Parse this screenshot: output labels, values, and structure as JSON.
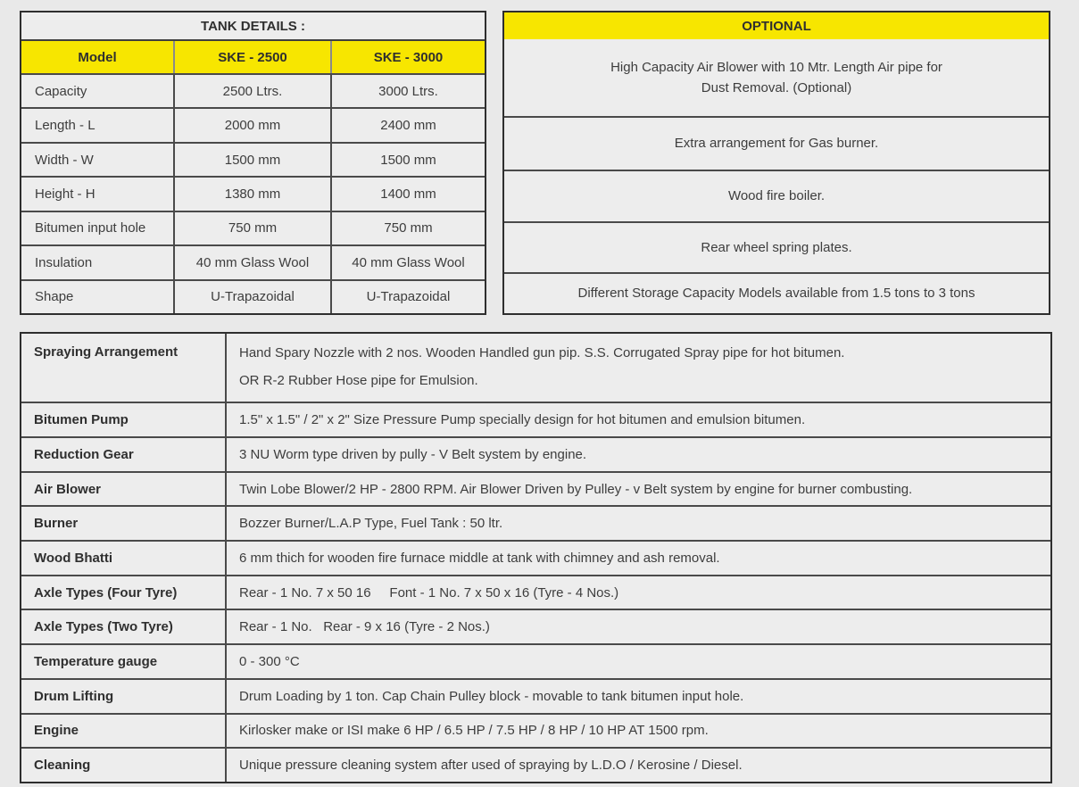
{
  "colors": {
    "accent_yellow": "#f7e600",
    "background": "#e9e9e9",
    "panel_fill": "#ededed",
    "border_dark": "#2e2e2e",
    "text": "#3d3d3d"
  },
  "tank_details": {
    "title": "TANK DETAILS :",
    "header": {
      "model": "Model",
      "ske_2500": "SKE - 2500",
      "ske_3000": "SKE - 3000"
    },
    "rows": [
      {
        "label": "Capacity",
        "ske_2500": "2500 Ltrs.",
        "ske_3000": "3000 Ltrs."
      },
      {
        "label": "Length - L",
        "ske_2500": "2000 mm",
        "ske_3000": "2400 mm"
      },
      {
        "label": "Width - W",
        "ske_2500": "1500 mm",
        "ske_3000": "1500 mm"
      },
      {
        "label": "Height - H",
        "ske_2500": "1380 mm",
        "ske_3000": "1400 mm"
      },
      {
        "label": "Bitumen input hole",
        "ske_2500": "750 mm",
        "ske_3000": "750 mm"
      },
      {
        "label": "Insulation",
        "ske_2500": "40 mm Glass Wool",
        "ske_3000": "40 mm Glass Wool"
      },
      {
        "label": "Shape",
        "ske_2500": "U-Trapazoidal",
        "ske_3000": "U-Trapazoidal"
      }
    ]
  },
  "optional": {
    "title": "OPTIONAL",
    "items": [
      "High Capacity Air Blower with 10 Mtr. Length Air pipe for\nDust Removal. (Optional)",
      "Extra arrangement for Gas burner.",
      "Wood fire boiler.",
      "Rear wheel spring plates.",
      "Different Storage Capacity Models available from 1.5 tons to 3 tons"
    ]
  },
  "specs": {
    "rows": [
      {
        "label": "Spraying Arrangement",
        "value": "Hand Spary Nozzle with 2 nos. Wooden Handled gun pip. S.S. Corrugated Spray pipe for hot bitumen.",
        "value2": "OR R-2 Rubber Hose pipe for Emulsion."
      },
      {
        "label": "Bitumen Pump",
        "value": "1.5\" x 1.5\" / 2\" x 2\" Size Pressure Pump specially design for hot bitumen and emulsion bitumen."
      },
      {
        "label": "Reduction Gear",
        "value": "3 NU Worm type driven by pully - V Belt system by engine."
      },
      {
        "label": "Air Blower",
        "value": "Twin Lobe Blower/2 HP - 2800 RPM. Air Blower Driven by Pulley - v Belt system by engine for burner combusting."
      },
      {
        "label": "Burner",
        "value": "Bozzer Burner/L.A.P Type, Fuel Tank : 50 ltr."
      },
      {
        "label": "Wood Bhatti",
        "value": "6 mm thich for wooden fire furnace middle at tank with chimney and ash removal."
      },
      {
        "label": "Axle Types (Four Tyre)",
        "value": "Rear - 1 No. 7 x 50 16     Font - 1 No. 7 x 50 x 16 (Tyre - 4 Nos.)"
      },
      {
        "label": "Axle Types (Two Tyre)",
        "value": "Rear - 1 No.   Rear - 9 x 16 (Tyre - 2 Nos.)"
      },
      {
        "label": "Temperature gauge",
        "value": "0 - 300 °C"
      },
      {
        "label": "Drum Lifting",
        "value": "Drum Loading by 1 ton. Cap Chain Pulley block - movable to tank bitumen input hole."
      },
      {
        "label": "Engine",
        "value": "Kirlosker make or ISI make 6 HP / 6.5 HP / 7.5 HP / 8 HP / 10 HP AT 1500 rpm."
      },
      {
        "label": "Cleaning",
        "value": "Unique pressure cleaning system after used of spraying by L.D.O / Kerosine / Diesel."
      }
    ]
  }
}
